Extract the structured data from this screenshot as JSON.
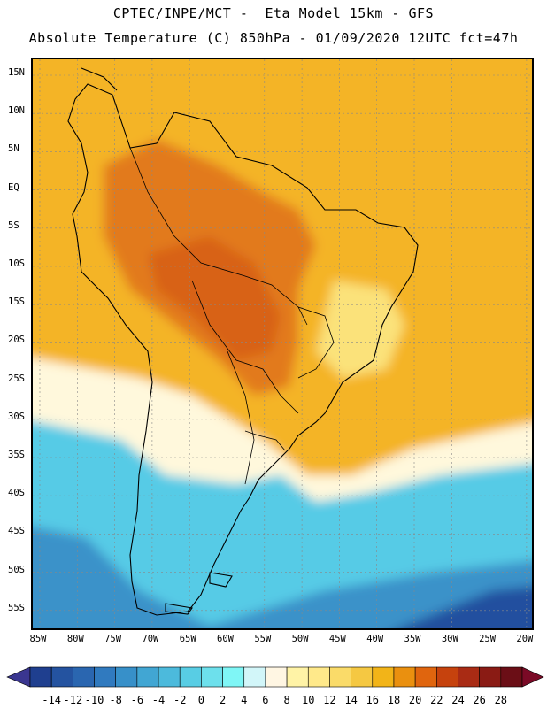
{
  "title_line1": "CPTEC/INPE/MCT -  Eta Model 15km - GFS",
  "title_line2": "Absolute Temperature (C) 850hPa - 01/09/2020 12UTC fct=47h",
  "lat_labels": [
    "15N",
    "10N",
    "5N",
    "EQ",
    "5S",
    "10S",
    "15S",
    "20S",
    "25S",
    "30S",
    "35S",
    "40S",
    "45S",
    "50S",
    "55S"
  ],
  "lon_labels": [
    "85W",
    "80W",
    "75W",
    "70W",
    "65W",
    "60W",
    "55W",
    "50W",
    "45W",
    "40W",
    "35W",
    "30W",
    "25W",
    "20W"
  ],
  "colorbar": {
    "ticks": [
      "-14",
      "-12",
      "-10",
      "-8",
      "-6",
      "-4",
      "-2",
      "0",
      "2",
      "4",
      "6",
      "8",
      "10",
      "12",
      "14",
      "16",
      "18",
      "20",
      "22",
      "24",
      "26",
      "28"
    ],
    "colors": [
      "#1f3f8f",
      "#2453a0",
      "#2a66b0",
      "#307abf",
      "#3790c9",
      "#41a6d3",
      "#4cbadc",
      "#58cde4",
      "#6de0ec",
      "#7ff6f6",
      "#d2f6f9",
      "#fff6e3",
      "#fff3a6",
      "#ffe98a",
      "#fadb69",
      "#f5c842",
      "#f2b418",
      "#ea900f",
      "#e0650e",
      "#c6420d",
      "#a92b14",
      "#8a1b14",
      "#6b0e16"
    ],
    "under_color": "#3a3690",
    "over_color": "#7a0a26"
  },
  "field_colors": {
    "ocean_warm": "#f4b425",
    "inland_hot": "#e27a1b",
    "hot_core": "#d86215",
    "northeast_mild": "#fbe27a",
    "cool_front": "#fff8dc",
    "ocean_cold": "#56cbe6",
    "ocean_colder": "#3a92c9",
    "ocean_coldest": "#24509f",
    "land_outline": "#000000"
  }
}
